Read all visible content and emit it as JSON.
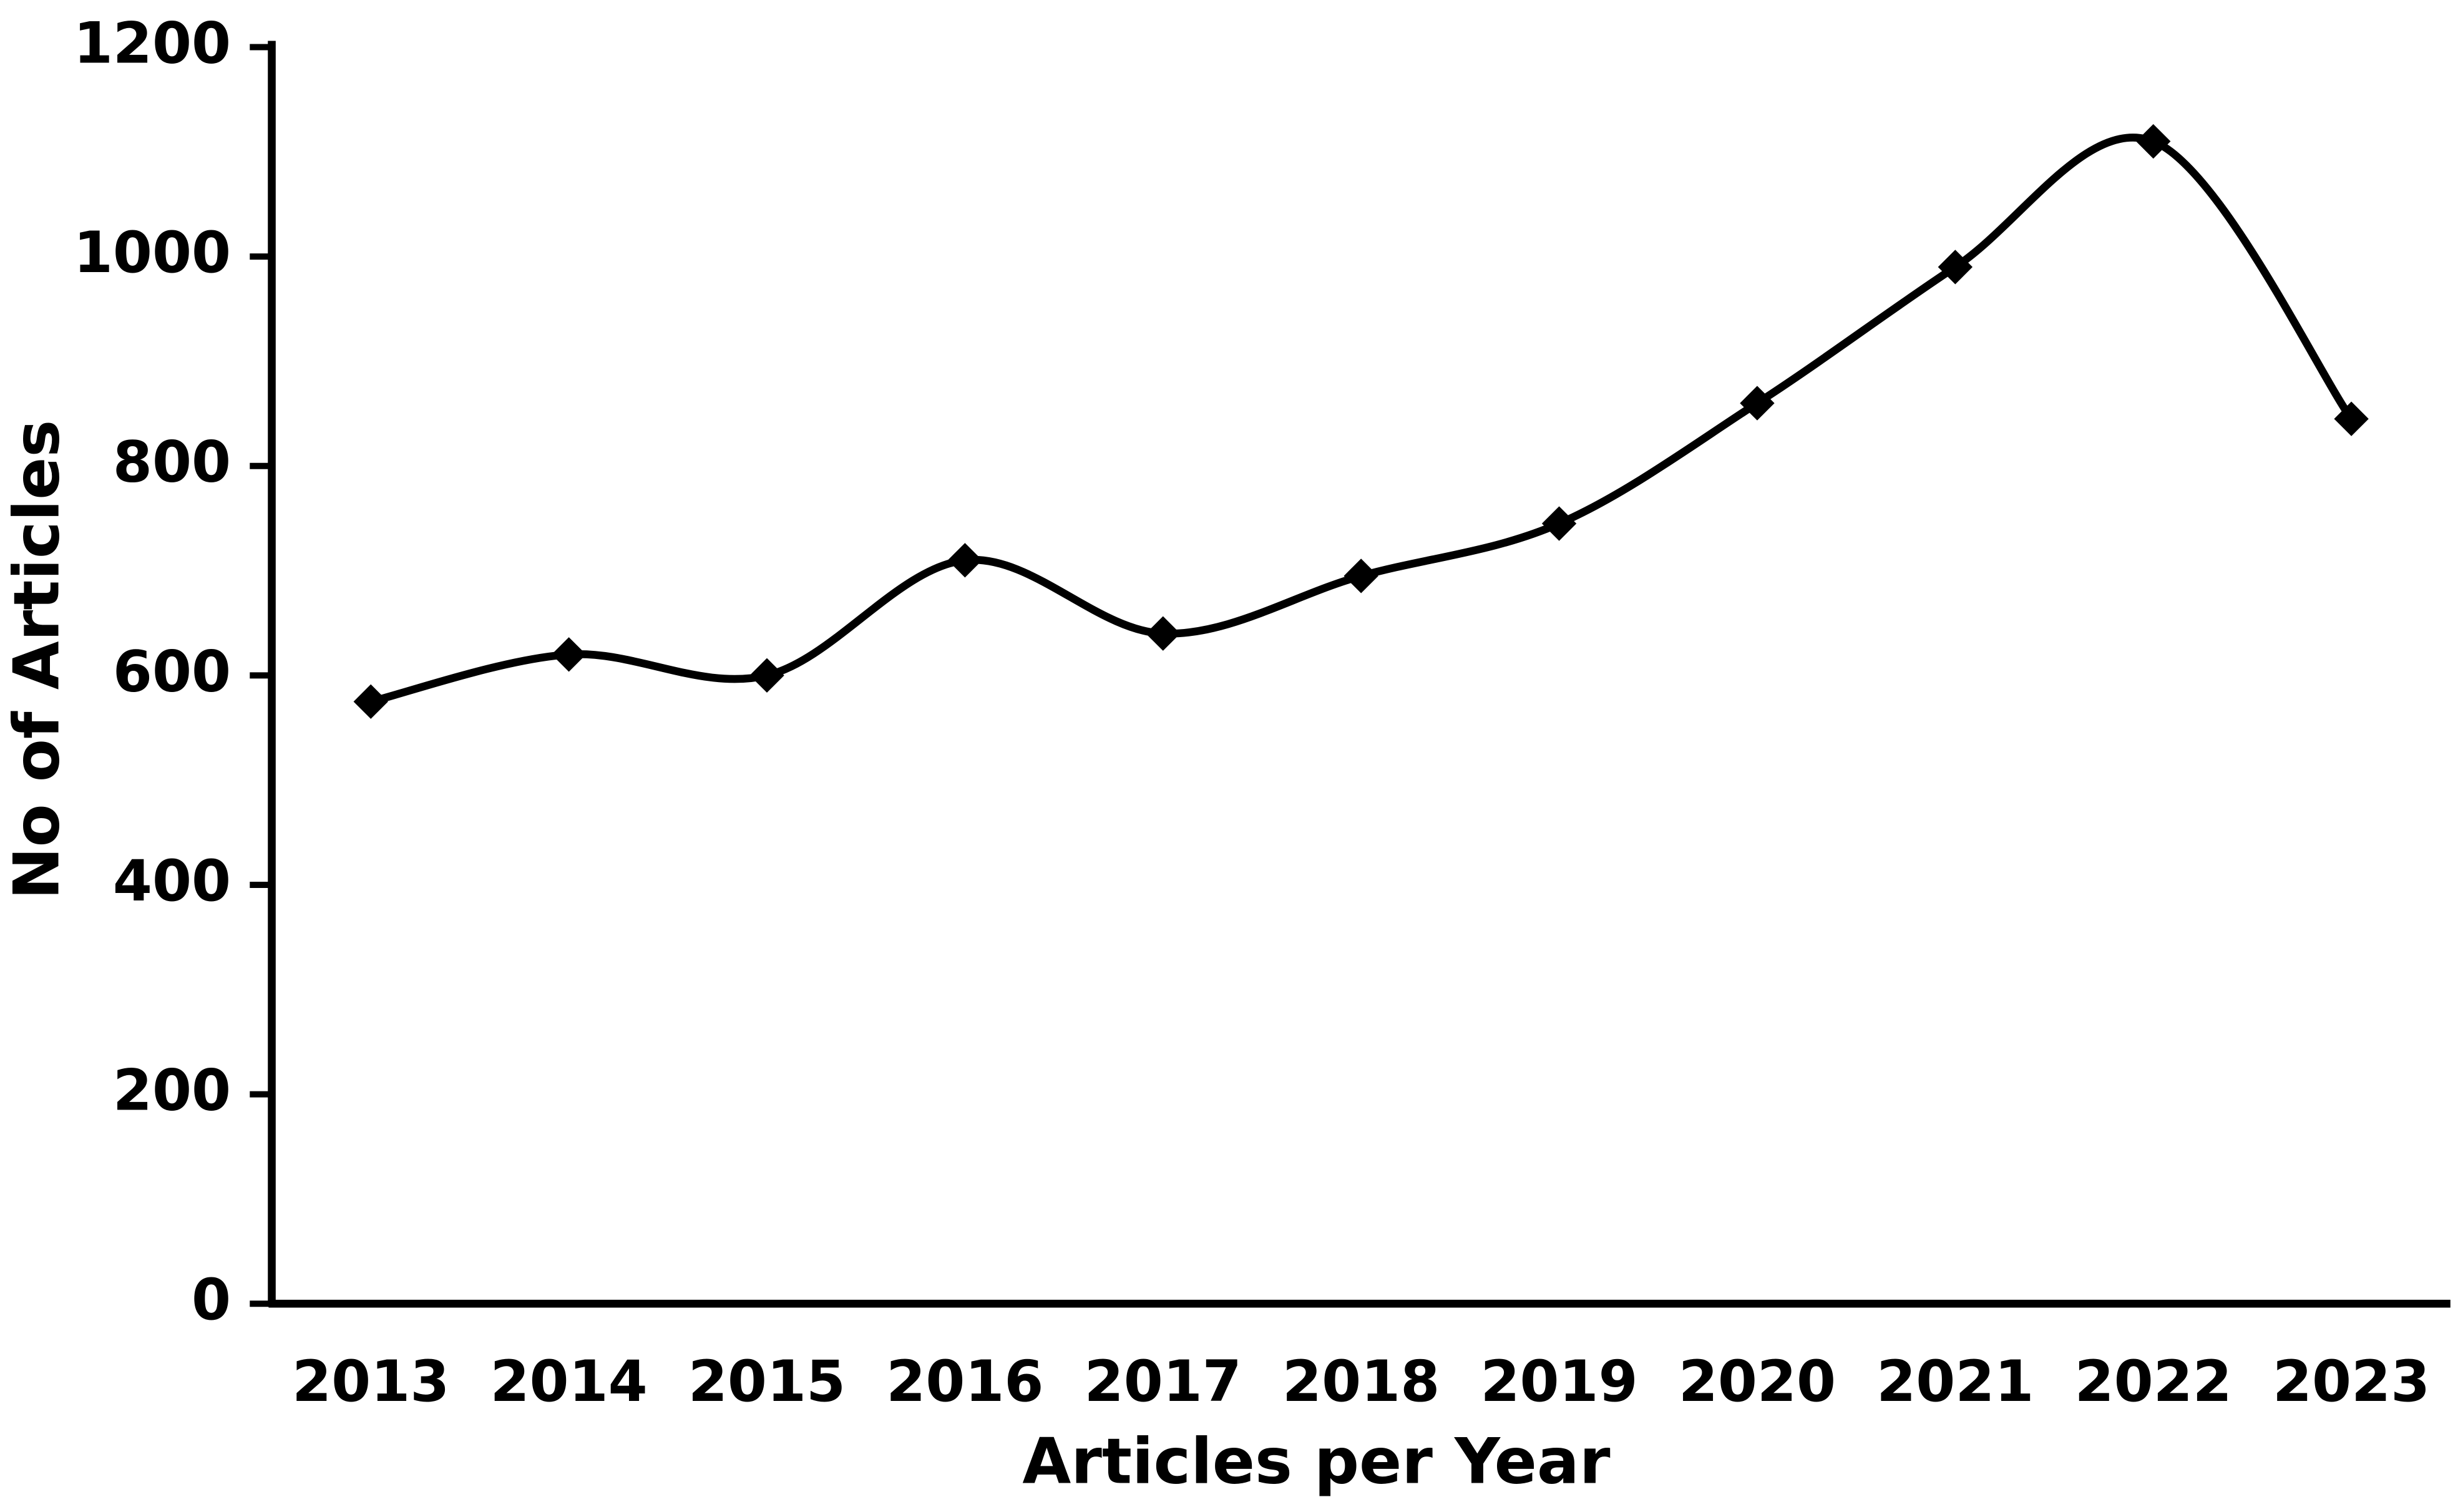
{
  "chart_data": {
    "type": "line",
    "x_label": "Articles per Year",
    "y_label": "No of Articles",
    "categories": [
      "2013",
      "2014",
      "2015",
      "2016",
      "2017",
      "2018",
      "2019",
      "2020",
      "2021",
      "2022",
      "2023"
    ],
    "series": [
      {
        "name": "Articles",
        "color": "#000000",
        "values": [
          575,
          620,
          600,
          710,
          640,
          695,
          745,
          860,
          990,
          1110,
          845
        ]
      }
    ],
    "ylim": [
      0,
      1200
    ],
    "yticks": [
      0,
      200,
      400,
      600,
      800,
      1000,
      1200
    ],
    "smooth": true,
    "marker": "diamond",
    "grid": false,
    "legend": false
  }
}
